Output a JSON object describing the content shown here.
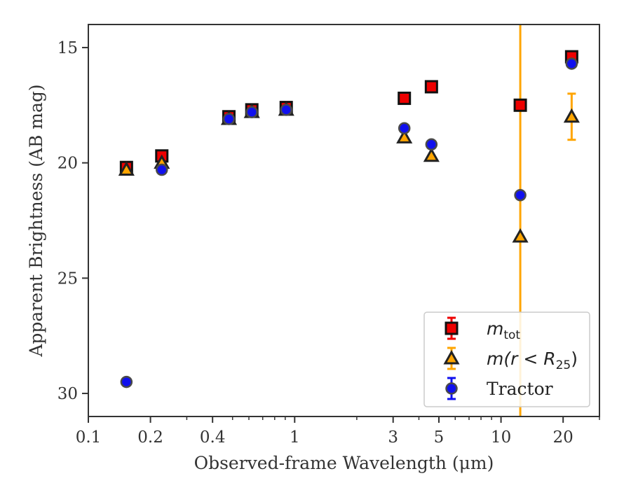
{
  "chart_data": {
    "type": "scatter",
    "title": "",
    "xlabel": "Observed-frame Wavelength (μm)",
    "ylabel": "Apparent Brightness (AB mag)",
    "x_scale": "log",
    "xlim": [
      0.1,
      30
    ],
    "ylim": [
      31,
      14
    ],
    "y_inverted": true,
    "grid": false,
    "legend_position": "lower-right",
    "x_ticks": [
      {
        "value": 0.1,
        "label": "0.1"
      },
      {
        "value": 0.2,
        "label": "0.2"
      },
      {
        "value": 0.4,
        "label": "0.4"
      },
      {
        "value": 1,
        "label": "1"
      },
      {
        "value": 3,
        "label": "3"
      },
      {
        "value": 5,
        "label": "5"
      },
      {
        "value": 10,
        "label": "10"
      },
      {
        "value": 20,
        "label": "20"
      }
    ],
    "x_minor_ticks": [
      0.3,
      0.5,
      0.6,
      0.7,
      0.8,
      0.9,
      2,
      4,
      6,
      7,
      8,
      9,
      30
    ],
    "y_ticks": [
      {
        "value": 15,
        "label": "15"
      },
      {
        "value": 20,
        "label": "20"
      },
      {
        "value": 25,
        "label": "25"
      },
      {
        "value": 30,
        "label": "30"
      }
    ],
    "series": [
      {
        "name": "m_tot",
        "legend_base": "m",
        "legend_sub": "tot",
        "marker": "square",
        "color": "#ee0000",
        "points": [
          {
            "x": 0.153,
            "y": 20.2
          },
          {
            "x": 0.227,
            "y": 19.7
          },
          {
            "x": 0.48,
            "y": 18.0
          },
          {
            "x": 0.62,
            "y": 17.7
          },
          {
            "x": 0.91,
            "y": 17.6
          },
          {
            "x": 3.4,
            "y": 17.2
          },
          {
            "x": 4.6,
            "y": 16.7
          },
          {
            "x": 12.4,
            "y": 17.5
          },
          {
            "x": 22.0,
            "y": 15.4
          }
        ]
      },
      {
        "name": "m(r < R25)",
        "legend_base": "m(r < R",
        "legend_sub": "25",
        "legend_tail": ")",
        "marker": "triangle",
        "color": "#ffa500",
        "points": [
          {
            "x": 0.153,
            "y": 20.3
          },
          {
            "x": 0.227,
            "y": 20.0
          },
          {
            "x": 0.48,
            "y": 18.1
          },
          {
            "x": 0.62,
            "y": 17.8
          },
          {
            "x": 0.91,
            "y": 17.7
          },
          {
            "x": 3.4,
            "y": 18.9
          },
          {
            "x": 4.6,
            "y": 19.7
          },
          {
            "x": 12.4,
            "y": 23.2,
            "yerr_full_axis": true
          },
          {
            "x": 22.0,
            "y": 18.0,
            "yerr": 1.0
          }
        ]
      },
      {
        "name": "Tractor",
        "legend_base": "Tractor",
        "marker": "circle",
        "color": "#1010ee",
        "points": [
          {
            "x": 0.153,
            "y": 29.5
          },
          {
            "x": 0.227,
            "y": 20.3
          },
          {
            "x": 0.48,
            "y": 18.1
          },
          {
            "x": 0.62,
            "y": 17.8
          },
          {
            "x": 0.91,
            "y": 17.7
          },
          {
            "x": 3.4,
            "y": 18.5
          },
          {
            "x": 4.6,
            "y": 19.2
          },
          {
            "x": 12.4,
            "y": 21.4
          },
          {
            "x": 22.0,
            "y": 15.7
          }
        ]
      }
    ]
  }
}
